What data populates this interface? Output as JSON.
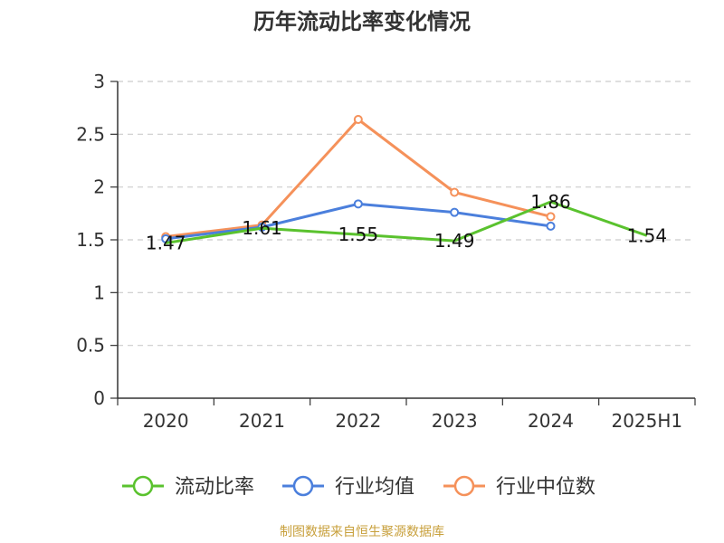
{
  "title": "历年流动比率变化情况",
  "source": "制图数据来自恒生聚源数据库",
  "colors": {
    "流动比率": "#5ac22e",
    "行业均值": "#4b7fdc",
    "行业中位数": "#f5915a",
    "grid": "#cccccc",
    "axis": "#333333"
  },
  "chart_data": {
    "type": "line",
    "categories": [
      "2020",
      "2021",
      "2022",
      "2023",
      "2024",
      "2025H1"
    ],
    "ylim": [
      0,
      3
    ],
    "yticks": [
      "0",
      "0.5",
      "1",
      "1.5",
      "2",
      "2.5",
      "3"
    ],
    "grid": true,
    "legend_position": "bottom",
    "series": [
      {
        "name": "流动比率",
        "values": [
          1.47,
          1.61,
          1.55,
          1.49,
          1.86,
          1.54
        ],
        "labels": [
          "1.47",
          "1.61",
          "1.55",
          "1.49",
          "1.86",
          "1.54"
        ],
        "markers": false
      },
      {
        "name": "行业均值",
        "values": [
          1.51,
          1.62,
          1.84,
          1.76,
          1.63,
          null
        ],
        "markers": true
      },
      {
        "name": "行业中位数",
        "values": [
          1.53,
          1.64,
          2.64,
          1.95,
          1.72,
          null
        ],
        "markers": true
      }
    ]
  }
}
